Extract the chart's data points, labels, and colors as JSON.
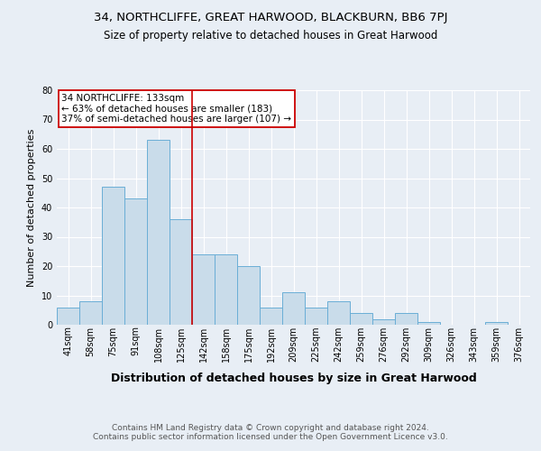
{
  "title": "34, NORTHCLIFFE, GREAT HARWOOD, BLACKBURN, BB6 7PJ",
  "subtitle": "Size of property relative to detached houses in Great Harwood",
  "xlabel": "Distribution of detached houses by size in Great Harwood",
  "ylabel": "Number of detached properties",
  "categories": [
    "41sqm",
    "58sqm",
    "75sqm",
    "91sqm",
    "108sqm",
    "125sqm",
    "142sqm",
    "158sqm",
    "175sqm",
    "192sqm",
    "209sqm",
    "225sqm",
    "242sqm",
    "259sqm",
    "276sqm",
    "292sqm",
    "309sqm",
    "326sqm",
    "343sqm",
    "359sqm",
    "376sqm"
  ],
  "values": [
    6,
    8,
    47,
    43,
    63,
    36,
    24,
    24,
    20,
    6,
    11,
    6,
    8,
    4,
    2,
    4,
    1,
    0,
    0,
    1,
    0
  ],
  "bar_color": "#c9dcea",
  "bar_edge_color": "#6aaed6",
  "vline_x": 5.5,
  "vline_color": "#cc0000",
  "annotation_text": "34 NORTHCLIFFE: 133sqm\n← 63% of detached houses are smaller (183)\n37% of semi-detached houses are larger (107) →",
  "annotation_box_color": "#ffffff",
  "annotation_box_edge": "#cc0000",
  "bg_color": "#e8eef5",
  "plot_bg_color": "#e8eef5",
  "grid_color": "#ffffff",
  "footer_text": "Contains HM Land Registry data © Crown copyright and database right 2024.\nContains public sector information licensed under the Open Government Licence v3.0.",
  "title_fontsize": 9.5,
  "subtitle_fontsize": 8.5,
  "ylabel_fontsize": 8,
  "xlabel_fontsize": 9,
  "tick_fontsize": 7,
  "annot_fontsize": 7.5,
  "footer_fontsize": 6.5,
  "ylim": [
    0,
    80
  ],
  "yticks": [
    0,
    10,
    20,
    30,
    40,
    50,
    60,
    70,
    80
  ]
}
